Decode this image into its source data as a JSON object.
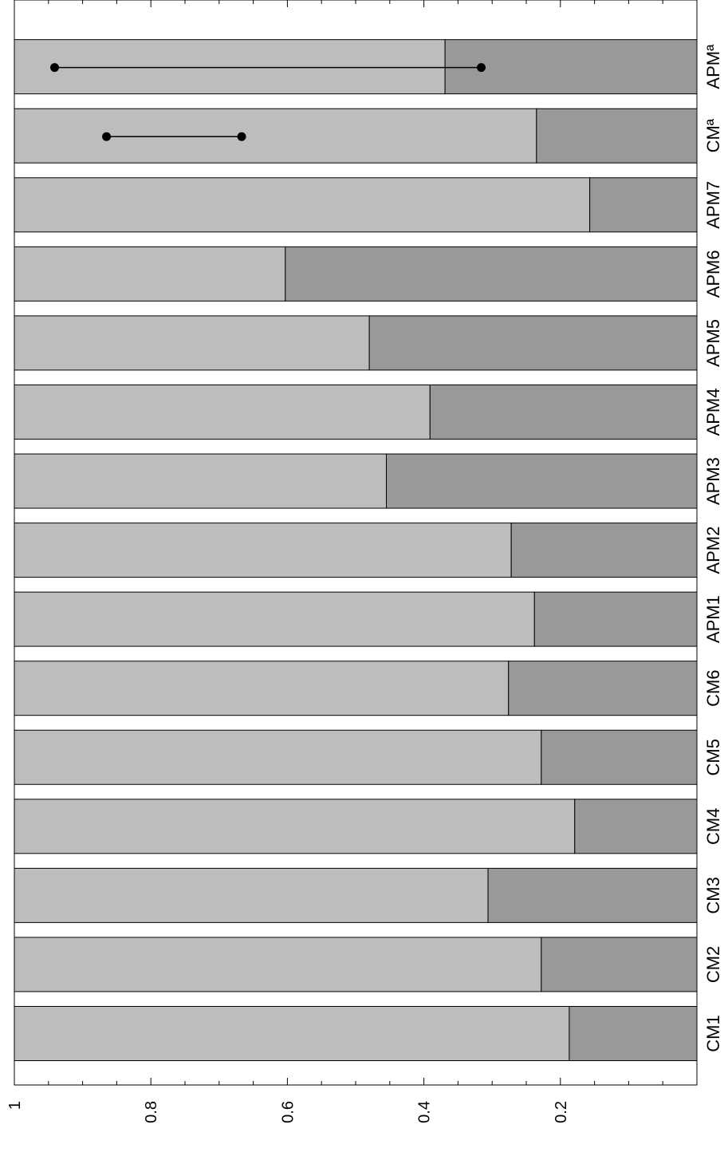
{
  "chart_data": {
    "type": "bar",
    "orientation": "horizontal-stacked",
    "rotated": "90deg clockwise",
    "title": "",
    "xlabel": "",
    "ylabel": "",
    "xlim": [
      0,
      1
    ],
    "x_reversed": true,
    "ticks": [
      {
        "value": 1,
        "label": "1"
      },
      {
        "value": 0.8,
        "label": "0.8"
      },
      {
        "value": 0.6,
        "label": "0.6"
      },
      {
        "value": 0.4,
        "label": "0.4"
      },
      {
        "value": 0.2,
        "label": "0.2"
      }
    ],
    "minor_tick_step": 0.05,
    "categories": [
      "CM1",
      "CM2",
      "CM3",
      "CM4",
      "CM5",
      "CM6",
      "APM1",
      "APM2",
      "APM3",
      "APM4",
      "APM5",
      "APM6",
      "APM7",
      "CMª",
      "APMª"
    ],
    "series": [
      {
        "values": [
          0.813,
          0.772,
          0.694,
          0.821,
          0.772,
          0.724,
          0.762,
          0.728,
          0.545,
          0.609,
          0.52,
          0.397,
          0.843,
          0.765,
          0.631
        ]
      },
      {
        "values": [
          0.187,
          0.228,
          0.306,
          0.179,
          0.228,
          0.276,
          0.238,
          0.272,
          0.455,
          0.391,
          0.48,
          0.603,
          0.157,
          0.235,
          0.369
        ]
      }
    ],
    "error_bars": [
      {
        "category": "CMª",
        "low": 0.667,
        "high": 0.865
      },
      {
        "category": "APMª",
        "low": 0.316,
        "high": 0.941
      }
    ],
    "colors": {
      "series1": "#bdbdbd",
      "series2": "#999999",
      "edge": "#000000"
    },
    "grid": false
  }
}
